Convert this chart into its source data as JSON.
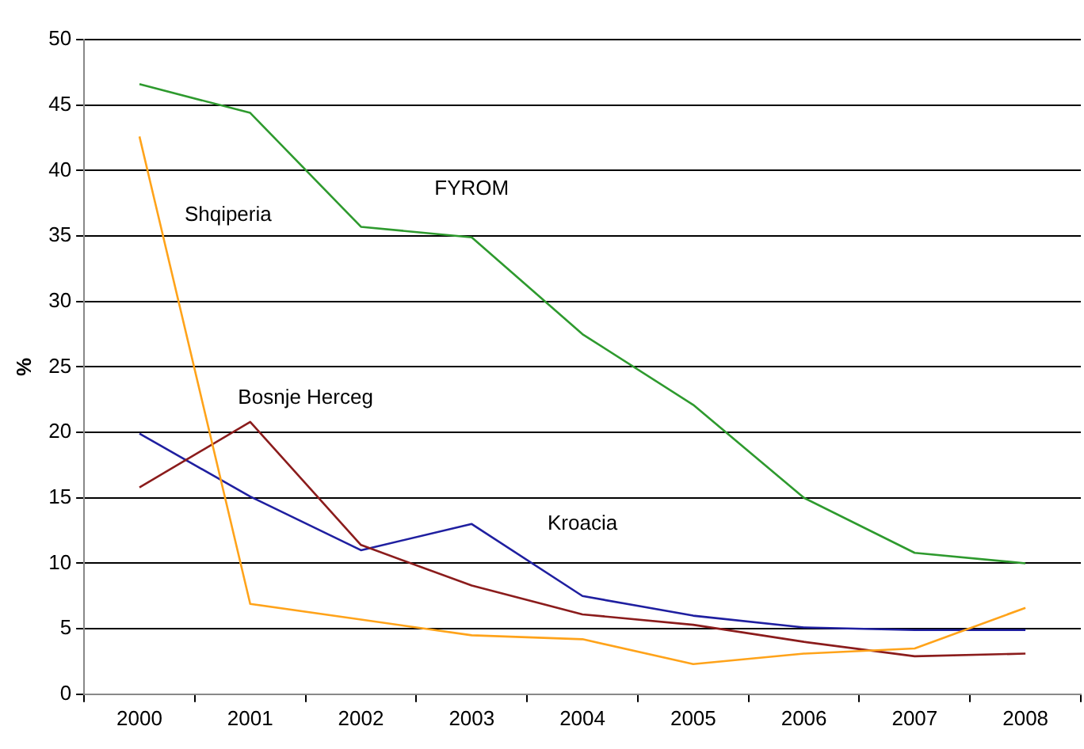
{
  "chart_data": {
    "type": "line",
    "ylabel": "%",
    "categories": [
      "2000",
      "2001",
      "2002",
      "2003",
      "2004",
      "2005",
      "2006",
      "2007",
      "2008"
    ],
    "ylim": [
      0,
      50
    ],
    "yticks": [
      0,
      5,
      10,
      15,
      20,
      25,
      30,
      35,
      40,
      45,
      50
    ],
    "grid": "y",
    "legend": false,
    "marker": "none",
    "series": [
      {
        "name": "FYROM",
        "color": "#2e9a2e",
        "values": [
          46.6,
          44.4,
          35.7,
          34.9,
          27.5,
          22.1,
          15.0,
          10.8,
          10.0
        ]
      },
      {
        "name": "Shqiperia",
        "color": "#ffa31a",
        "values": [
          42.6,
          6.9,
          5.7,
          4.5,
          4.2,
          2.3,
          3.1,
          3.5,
          6.6
        ]
      },
      {
        "name": "Bosnje Herceg",
        "color": "#8b1c1c",
        "values": [
          15.8,
          20.8,
          11.4,
          8.3,
          6.1,
          5.3,
          4.0,
          2.9,
          3.1
        ]
      },
      {
        "name": "Kroacia",
        "color": "#1f1fa0",
        "values": [
          19.9,
          15.1,
          11.0,
          13.0,
          7.5,
          6.0,
          5.1,
          4.9,
          4.9
        ]
      }
    ]
  }
}
